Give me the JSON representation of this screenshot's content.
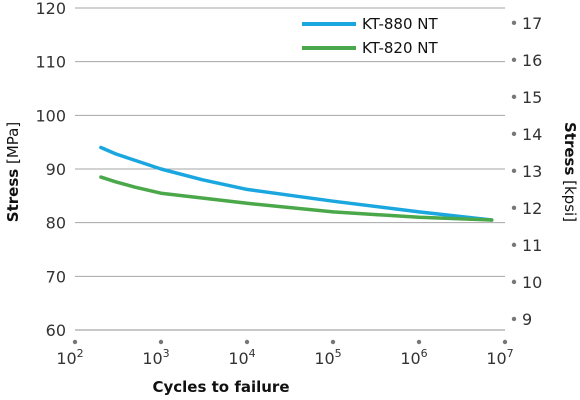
{
  "chart_data": {
    "type": "line",
    "x_scale": "log",
    "xlim": [
      100,
      10000000
    ],
    "x_ticks": [
      {
        "base": "10",
        "exp": "2"
      },
      {
        "base": "10",
        "exp": "3"
      },
      {
        "base": "10",
        "exp": "4"
      },
      {
        "base": "10",
        "exp": "5"
      },
      {
        "base": "10",
        "exp": "6"
      },
      {
        "base": "10",
        "exp": "7"
      }
    ],
    "xlabel": "Cycles to failure",
    "ylim": [
      60,
      120
    ],
    "y_ticks": [
      60,
      70,
      80,
      90,
      100,
      110,
      120
    ],
    "ylabel": {
      "bold": "Stress",
      "unit": " [MPa]"
    },
    "y2lim": [
      8.7,
      17.4
    ],
    "y2_ticks": [
      9,
      10,
      11,
      12,
      13,
      14,
      15,
      16,
      17
    ],
    "y2label": {
      "bold": "Stress",
      "unit": " [kpsi]"
    },
    "grid": "horizontal",
    "legend_position": "top-right",
    "series": [
      {
        "name": "KT-880 NT",
        "color": "#1aa7e0",
        "x": [
          200,
          300,
          500,
          1000,
          3000,
          10000,
          100000,
          1000000,
          7000000
        ],
        "y": [
          94.0,
          92.8,
          91.6,
          90.0,
          88.0,
          86.2,
          84.0,
          82.0,
          80.5
        ]
      },
      {
        "name": "KT-820 NT",
        "color": "#4aa84a",
        "x": [
          200,
          300,
          500,
          1000,
          3000,
          10000,
          100000,
          1000000,
          7000000
        ],
        "y": [
          88.5,
          87.6,
          86.6,
          85.5,
          84.6,
          83.6,
          82.0,
          81.0,
          80.5
        ]
      }
    ]
  }
}
